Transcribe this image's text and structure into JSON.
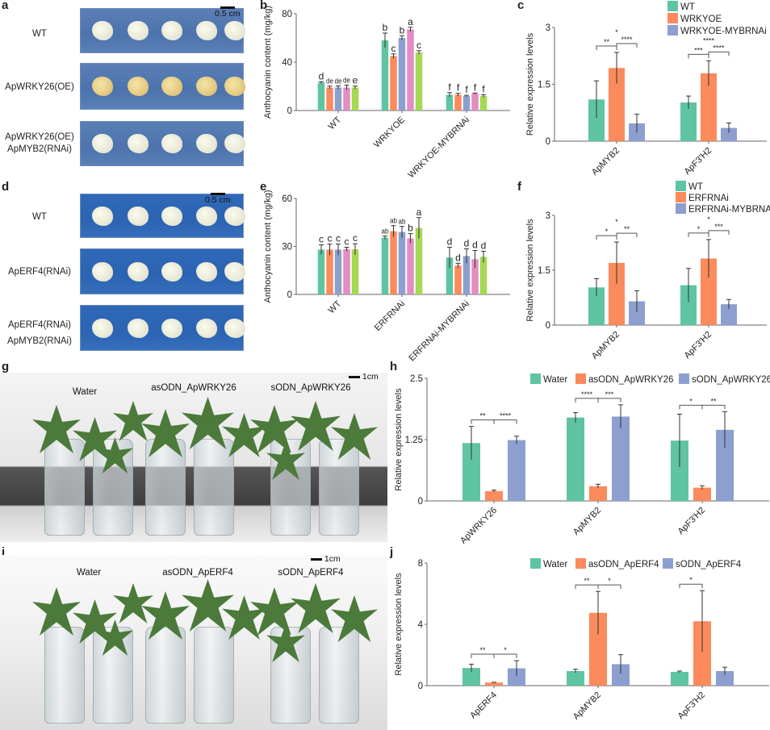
{
  "panel_letters": {
    "a": "a",
    "b": "b",
    "c": "c",
    "d": "d",
    "e": "e",
    "f": "f",
    "g": "g",
    "h": "h",
    "i": "i",
    "j": "j"
  },
  "panel_a": {
    "scale": "0.5 cm",
    "rows": [
      "WT",
      "ApWRKY26(OE)",
      "ApWRKY26(OE)\nApMYB2(RNAi)"
    ]
  },
  "panel_d": {
    "scale": "0.5 cm",
    "rows": [
      "WT",
      "ApERF4(RNAi)",
      "ApERF4(RNAi)\nApMYB2(RNAi)"
    ]
  },
  "panel_g": {
    "scale": "1cm",
    "labels": [
      "Water",
      "asODN_ApWRKY26",
      "sODN_ApWRKY26"
    ]
  },
  "panel_i": {
    "scale": "1cm",
    "labels": [
      "Water",
      "asODN_ApERF4",
      "sODN_ApERF4"
    ]
  },
  "colors": {
    "green": "#5fc4a1",
    "orange": "#fb8a5c",
    "blue": "#8d9fcf",
    "pink": "#e48cc4",
    "lime": "#a5d853"
  },
  "chart_data": [
    {
      "panel": "b",
      "type": "bar",
      "ylabel": "Anthocyanin content (mg/kg)",
      "ylim": [
        0,
        80
      ],
      "yticks": [
        "0",
        "40",
        "80"
      ],
      "categories": [
        "WT",
        "WRKYOE",
        "WRKYOE-MYBRNAi"
      ],
      "series_colors": [
        "#5fc4a1",
        "#fb8a5c",
        "#8d9fcf",
        "#e48cc4",
        "#a5d853"
      ],
      "values": [
        [
          23,
          19,
          19,
          19,
          19
        ],
        [
          58,
          45,
          60,
          67,
          48
        ],
        [
          13,
          13,
          12,
          14,
          12
        ]
      ],
      "errors": [
        [
          0.8,
          1.2,
          1.3,
          2,
          1.2
        ],
        [
          6,
          1.8,
          1.8,
          1.8,
          1.5
        ],
        [
          1.8,
          1.2,
          0.6,
          0.4,
          1
        ]
      ],
      "letters": [
        [
          "d",
          "de",
          "de",
          "de",
          "e"
        ],
        [
          "b",
          "c",
          "b",
          "a",
          "c"
        ],
        [
          "f",
          "f",
          "f",
          "f",
          "f"
        ]
      ]
    },
    {
      "panel": "e",
      "type": "bar",
      "ylabel": "Anthocyanin content (mg/kg)",
      "ylim": [
        0,
        60
      ],
      "yticks": [
        "0",
        "30",
        "60"
      ],
      "categories": [
        "WT",
        "ERFRNAi",
        "ERFRNAi-MYBRNAi"
      ],
      "series_colors": [
        "#5fc4a1",
        "#fb8a5c",
        "#8d9fcf",
        "#e48cc4",
        "#a5d853"
      ],
      "values": [
        [
          28,
          28,
          28,
          28.3,
          28.2
        ],
        [
          35.5,
          39.5,
          39,
          35,
          41.5
        ],
        [
          23,
          18,
          24,
          22,
          23.5
        ]
      ],
      "errors": [
        [
          3,
          3.5,
          3.5,
          1.2,
          3.5
        ],
        [
          1,
          3.5,
          3.5,
          3,
          6.5
        ],
        [
          6.5,
          1.5,
          4.5,
          5.5,
          3.5
        ]
      ],
      "letters": [
        [
          "c",
          "c",
          "c",
          "c",
          "c"
        ],
        [
          "ab",
          "ab",
          "ab",
          "b",
          "a"
        ],
        [
          "d",
          "d",
          "d",
          "d",
          "d"
        ]
      ]
    },
    {
      "panel": "c",
      "type": "bar",
      "ylabel": "Relative expression levels",
      "ylim": [
        0,
        3
      ],
      "yticks": [
        "0",
        "1.5",
        "3"
      ],
      "categories": [
        "ApMYB2",
        "ApF3'H2"
      ],
      "series": [
        {
          "name": "WT",
          "color": "#5fc4a1"
        },
        {
          "name": "WRKYOE",
          "color": "#fb8a5c"
        },
        {
          "name": "WRKYOE-MYBRNAi",
          "color": "#8d9fcf"
        }
      ],
      "values": [
        [
          1.1,
          1.93,
          0.47
        ],
        [
          1.02,
          1.79,
          0.35
        ]
      ],
      "errors": [
        [
          0.49,
          0.41,
          0.24
        ],
        [
          0.17,
          0.33,
          0.13
        ]
      ],
      "significance": [
        [
          {
            "pair": [
              0,
              1
            ],
            "label": "**"
          },
          {
            "pair": [
              1,
              2
            ],
            "label": "****",
            "mid": "*"
          }
        ],
        [
          {
            "pair": [
              0,
              1
            ],
            "label": "***"
          },
          {
            "pair": [
              1,
              2
            ],
            "label": "****",
            "mid": "****"
          }
        ]
      ]
    },
    {
      "panel": "f",
      "type": "bar",
      "ylabel": "Relative expression levels",
      "ylim": [
        0,
        3
      ],
      "yticks": [
        "0",
        "1.5",
        "3"
      ],
      "categories": [
        "ApMYB2",
        "ApF3'H2"
      ],
      "series": [
        {
          "name": "WT",
          "color": "#5fc4a1"
        },
        {
          "name": "ERFRNAi",
          "color": "#fb8a5c"
        },
        {
          "name": "ERFRNAi-MYBRNAi",
          "color": "#8d9fcf"
        }
      ],
      "values": [
        [
          1.03,
          1.7,
          0.65
        ],
        [
          1.09,
          1.82,
          0.57
        ]
      ],
      "errors": [
        [
          0.24,
          0.57,
          0.29
        ],
        [
          0.46,
          0.52,
          0.13
        ]
      ],
      "significance": [
        [
          {
            "pair": [
              0,
              1
            ],
            "label": "*"
          },
          {
            "pair": [
              1,
              2
            ],
            "label": "**",
            "mid": "*"
          }
        ],
        [
          {
            "pair": [
              0,
              1
            ],
            "label": "*"
          },
          {
            "pair": [
              1,
              2
            ],
            "label": "***",
            "mid": "*"
          }
        ]
      ]
    },
    {
      "panel": "h",
      "type": "bar",
      "ylabel": "Relative expression levels",
      "ylim": [
        0,
        2.5
      ],
      "yticks": [
        "0",
        "1.25",
        "2.5"
      ],
      "categories": [
        "ApWRKY26",
        "ApMYB2",
        "ApF3'H2"
      ],
      "series": [
        {
          "name": "Water",
          "color": "#5fc4a1"
        },
        {
          "name": "asODN_ApWRKY26",
          "color": "#fb8a5c"
        },
        {
          "name": "sODN_ApWRKY26",
          "color": "#8d9fcf"
        }
      ],
      "values": [
        [
          1.18,
          0.2,
          1.24
        ],
        [
          1.7,
          0.3,
          1.72
        ],
        [
          1.23,
          0.27,
          1.45
        ]
      ],
      "errors": [
        [
          0.34,
          0.02,
          0.08
        ],
        [
          0.1,
          0.04,
          0.24
        ],
        [
          0.54,
          0.04,
          0.37
        ]
      ],
      "significance": [
        [
          {
            "pair": [
              0,
              1
            ],
            "label": "**"
          },
          {
            "pair": [
              1,
              2
            ],
            "label": "****"
          }
        ],
        [
          {
            "pair": [
              0,
              1
            ],
            "label": "****"
          },
          {
            "pair": [
              1,
              2
            ],
            "label": "***"
          }
        ],
        [
          {
            "pair": [
              0,
              1
            ],
            "label": "*"
          },
          {
            "pair": [
              1,
              2
            ],
            "label": "**"
          }
        ]
      ]
    },
    {
      "panel": "j",
      "type": "bar",
      "ylabel": "Relative expression levels",
      "ylim": [
        0,
        8
      ],
      "yticks": [
        "0",
        "4",
        "8"
      ],
      "categories": [
        "ApERF4",
        "ApMYB2",
        "ApF3'H2"
      ],
      "series": [
        {
          "name": "Water",
          "color": "#5fc4a1"
        },
        {
          "name": "asODN_ApERF4",
          "color": "#fb8a5c"
        },
        {
          "name": "sODN_ApERF4",
          "color": "#8d9fcf"
        }
      ],
      "values": [
        [
          1.15,
          0.2,
          1.13
        ],
        [
          0.95,
          4.75,
          1.4
        ],
        [
          0.9,
          4.2,
          0.95
        ]
      ],
      "errors": [
        [
          0.25,
          0.02,
          0.5
        ],
        [
          0.12,
          1.4,
          0.62
        ],
        [
          0.05,
          2.0,
          0.25
        ]
      ],
      "significance": [
        [
          {
            "pair": [
              0,
              1
            ],
            "label": "**"
          },
          {
            "pair": [
              1,
              2
            ],
            "label": "*"
          }
        ],
        [
          {
            "pair": [
              0,
              1
            ],
            "label": "**"
          },
          {
            "pair": [
              1,
              2
            ],
            "label": "*"
          }
        ],
        [
          {
            "pair": [
              0,
              1
            ],
            "label": "*"
          }
        ]
      ]
    }
  ]
}
